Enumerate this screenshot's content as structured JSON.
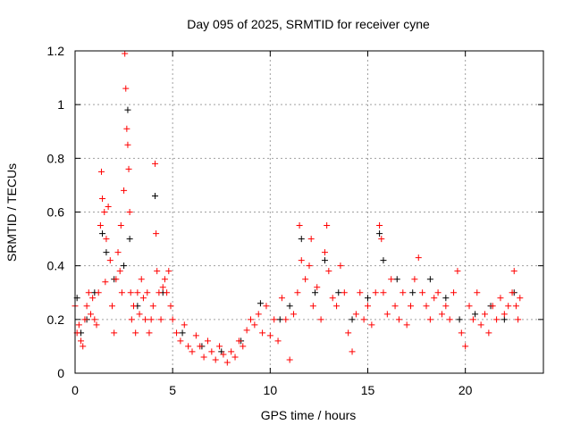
{
  "chart_data": {
    "type": "scatter",
    "title": "Day 095 of 2025, SRMTID for receiver cyne",
    "xlabel": "GPS time / hours",
    "ylabel": "SRMTID / TECUs",
    "xlim": [
      0,
      24
    ],
    "ylim": [
      0,
      1.2
    ],
    "xticks": [
      "0",
      "5",
      "10",
      "15",
      "20"
    ],
    "xtick_values": [
      0,
      5,
      10,
      15,
      20
    ],
    "yticks": [
      "0",
      "0.2",
      "0.4",
      "0.6",
      "0.8",
      "1",
      "1.2"
    ],
    "ytick_values": [
      0,
      0.2,
      0.4,
      0.6,
      0.8,
      1.0,
      1.2
    ],
    "grid": true,
    "marker": "+",
    "series": [
      {
        "name": "series-black",
        "color": "#000000",
        "points": [
          [
            0.1,
            0.28
          ],
          [
            0.3,
            0.15
          ],
          [
            0.6,
            0.2
          ],
          [
            1.0,
            0.3
          ],
          [
            1.4,
            0.52
          ],
          [
            1.6,
            0.45
          ],
          [
            2.0,
            0.35
          ],
          [
            2.5,
            0.4
          ],
          [
            2.7,
            0.98
          ],
          [
            2.8,
            0.5
          ],
          [
            3.2,
            0.25
          ],
          [
            4.1,
            0.66
          ],
          [
            4.5,
            0.3
          ],
          [
            5.5,
            0.15
          ],
          [
            6.5,
            0.1
          ],
          [
            7.5,
            0.08
          ],
          [
            8.5,
            0.12
          ],
          [
            9.5,
            0.26
          ],
          [
            10.5,
            0.2
          ],
          [
            11.0,
            0.25
          ],
          [
            11.6,
            0.5
          ],
          [
            12.3,
            0.3
          ],
          [
            12.8,
            0.42
          ],
          [
            13.5,
            0.3
          ],
          [
            14.2,
            0.2
          ],
          [
            15.0,
            0.28
          ],
          [
            15.6,
            0.52
          ],
          [
            15.8,
            0.42
          ],
          [
            16.5,
            0.35
          ],
          [
            17.3,
            0.3
          ],
          [
            18.2,
            0.35
          ],
          [
            19.0,
            0.28
          ],
          [
            19.7,
            0.2
          ],
          [
            20.5,
            0.22
          ],
          [
            21.3,
            0.25
          ],
          [
            22.0,
            0.2
          ],
          [
            22.5,
            0.3
          ]
        ]
      },
      {
        "name": "series-red",
        "color": "#ff0000",
        "points": [
          [
            0.0,
            0.25
          ],
          [
            0.1,
            0.15
          ],
          [
            0.2,
            0.18
          ],
          [
            0.3,
            0.12
          ],
          [
            0.4,
            0.1
          ],
          [
            0.5,
            0.2
          ],
          [
            0.6,
            0.25
          ],
          [
            0.7,
            0.3
          ],
          [
            0.8,
            0.22
          ],
          [
            0.9,
            0.28
          ],
          [
            1.0,
            0.2
          ],
          [
            1.1,
            0.18
          ],
          [
            1.2,
            0.3
          ],
          [
            1.3,
            0.55
          ],
          [
            1.35,
            0.75
          ],
          [
            1.4,
            0.65
          ],
          [
            1.5,
            0.6
          ],
          [
            1.55,
            0.34
          ],
          [
            1.6,
            0.5
          ],
          [
            1.7,
            0.62
          ],
          [
            1.8,
            0.42
          ],
          [
            1.9,
            0.25
          ],
          [
            2.0,
            0.15
          ],
          [
            2.1,
            0.35
          ],
          [
            2.2,
            0.45
          ],
          [
            2.3,
            0.38
          ],
          [
            2.35,
            0.55
          ],
          [
            2.4,
            0.3
          ],
          [
            2.5,
            0.68
          ],
          [
            2.55,
            1.19
          ],
          [
            2.6,
            1.06
          ],
          [
            2.65,
            0.91
          ],
          [
            2.7,
            0.85
          ],
          [
            2.75,
            0.76
          ],
          [
            2.8,
            0.6
          ],
          [
            2.85,
            0.3
          ],
          [
            2.9,
            0.2
          ],
          [
            3.0,
            0.25
          ],
          [
            3.1,
            0.15
          ],
          [
            3.2,
            0.3
          ],
          [
            3.3,
            0.22
          ],
          [
            3.4,
            0.35
          ],
          [
            3.5,
            0.28
          ],
          [
            3.6,
            0.2
          ],
          [
            3.7,
            0.3
          ],
          [
            3.8,
            0.15
          ],
          [
            3.9,
            0.2
          ],
          [
            4.0,
            0.25
          ],
          [
            4.1,
            0.78
          ],
          [
            4.15,
            0.52
          ],
          [
            4.2,
            0.38
          ],
          [
            4.3,
            0.3
          ],
          [
            4.4,
            0.2
          ],
          [
            4.5,
            0.32
          ],
          [
            4.6,
            0.35
          ],
          [
            4.7,
            0.3
          ],
          [
            4.8,
            0.38
          ],
          [
            4.9,
            0.25
          ],
          [
            5.0,
            0.2
          ],
          [
            5.2,
            0.15
          ],
          [
            5.4,
            0.12
          ],
          [
            5.6,
            0.18
          ],
          [
            5.8,
            0.1
          ],
          [
            6.0,
            0.08
          ],
          [
            6.2,
            0.14
          ],
          [
            6.4,
            0.1
          ],
          [
            6.6,
            0.06
          ],
          [
            6.8,
            0.12
          ],
          [
            7.0,
            0.08
          ],
          [
            7.2,
            0.05
          ],
          [
            7.4,
            0.1
          ],
          [
            7.6,
            0.07
          ],
          [
            7.8,
            0.04
          ],
          [
            8.0,
            0.08
          ],
          [
            8.2,
            0.06
          ],
          [
            8.4,
            0.12
          ],
          [
            8.6,
            0.1
          ],
          [
            8.8,
            0.16
          ],
          [
            9.0,
            0.2
          ],
          [
            9.2,
            0.18
          ],
          [
            9.4,
            0.22
          ],
          [
            9.6,
            0.15
          ],
          [
            9.8,
            0.25
          ],
          [
            10.0,
            0.14
          ],
          [
            10.2,
            0.2
          ],
          [
            10.4,
            0.12
          ],
          [
            10.6,
            0.28
          ],
          [
            10.8,
            0.2
          ],
          [
            11.0,
            0.05
          ],
          [
            11.2,
            0.22
          ],
          [
            11.4,
            0.3
          ],
          [
            11.5,
            0.55
          ],
          [
            11.6,
            0.42
          ],
          [
            11.8,
            0.35
          ],
          [
            12.0,
            0.4
          ],
          [
            12.1,
            0.5
          ],
          [
            12.2,
            0.25
          ],
          [
            12.4,
            0.32
          ],
          [
            12.6,
            0.2
          ],
          [
            12.8,
            0.45
          ],
          [
            12.9,
            0.55
          ],
          [
            13.0,
            0.38
          ],
          [
            13.2,
            0.28
          ],
          [
            13.4,
            0.25
          ],
          [
            13.6,
            0.4
          ],
          [
            13.8,
            0.3
          ],
          [
            14.0,
            0.15
          ],
          [
            14.2,
            0.08
          ],
          [
            14.4,
            0.22
          ],
          [
            14.6,
            0.3
          ],
          [
            14.8,
            0.2
          ],
          [
            15.0,
            0.25
          ],
          [
            15.2,
            0.18
          ],
          [
            15.4,
            0.3
          ],
          [
            15.6,
            0.55
          ],
          [
            15.7,
            0.5
          ],
          [
            15.8,
            0.3
          ],
          [
            16.0,
            0.22
          ],
          [
            16.2,
            0.35
          ],
          [
            16.4,
            0.25
          ],
          [
            16.6,
            0.2
          ],
          [
            16.8,
            0.3
          ],
          [
            17.0,
            0.18
          ],
          [
            17.2,
            0.25
          ],
          [
            17.4,
            0.35
          ],
          [
            17.6,
            0.43
          ],
          [
            17.8,
            0.3
          ],
          [
            18.0,
            0.25
          ],
          [
            18.2,
            0.2
          ],
          [
            18.4,
            0.28
          ],
          [
            18.6,
            0.3
          ],
          [
            18.8,
            0.22
          ],
          [
            19.0,
            0.25
          ],
          [
            19.2,
            0.2
          ],
          [
            19.4,
            0.3
          ],
          [
            19.6,
            0.38
          ],
          [
            19.8,
            0.15
          ],
          [
            20.0,
            0.1
          ],
          [
            20.2,
            0.25
          ],
          [
            20.4,
            0.2
          ],
          [
            20.6,
            0.3
          ],
          [
            20.8,
            0.18
          ],
          [
            21.0,
            0.22
          ],
          [
            21.2,
            0.15
          ],
          [
            21.4,
            0.25
          ],
          [
            21.6,
            0.2
          ],
          [
            21.8,
            0.28
          ],
          [
            22.0,
            0.22
          ],
          [
            22.2,
            0.25
          ],
          [
            22.4,
            0.3
          ],
          [
            22.5,
            0.38
          ],
          [
            22.6,
            0.25
          ],
          [
            22.7,
            0.2
          ],
          [
            22.8,
            0.28
          ]
        ]
      }
    ]
  }
}
